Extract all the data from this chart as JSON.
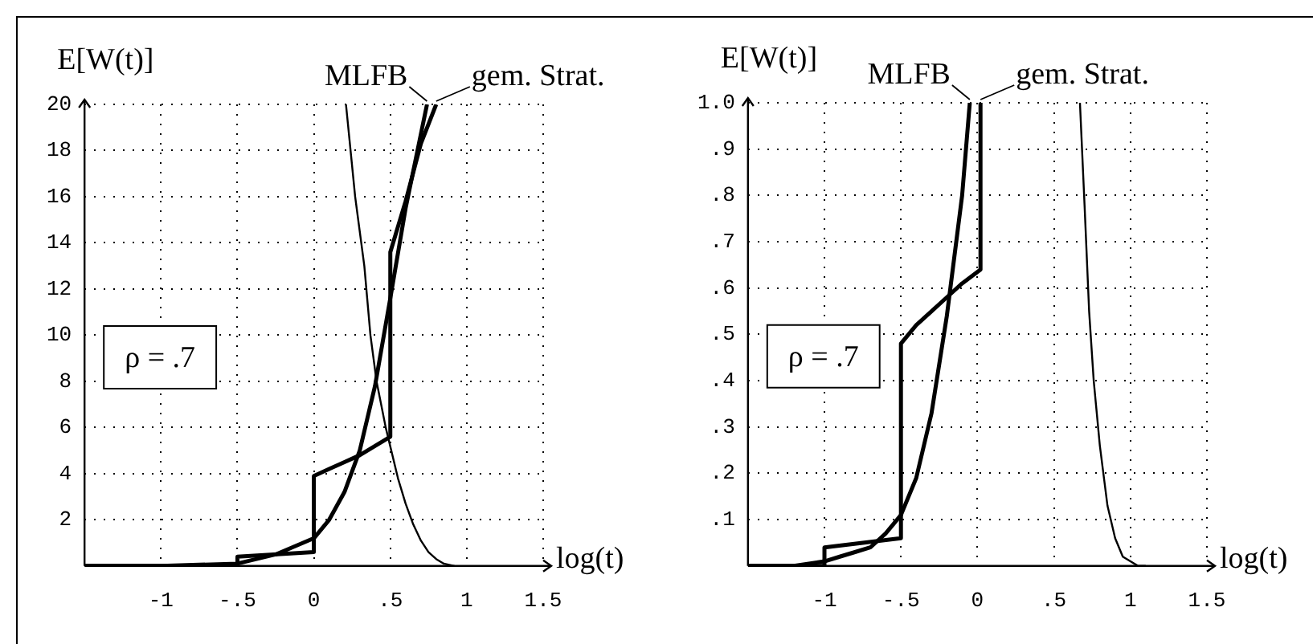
{
  "chart_data": [
    {
      "type": "line",
      "ylabel": "E[W(t)]",
      "xlabel": "log(t)",
      "xlim": [
        -1.5,
        1.5
      ],
      "ylim": [
        0,
        20
      ],
      "xticks": [
        {
          "value": -1,
          "label": "-1"
        },
        {
          "value": -0.5,
          "label": "-.5"
        },
        0,
        {
          "value": 0.5,
          "label": ".5"
        },
        1,
        1.5
      ],
      "yticks": [
        2,
        4,
        6,
        8,
        10,
        12,
        14,
        16,
        18,
        20
      ],
      "grid": true,
      "line_style": "solid",
      "marker": "none",
      "annotations": [
        "ρ = .7"
      ],
      "series": [
        {
          "name": "MLFB",
          "color": "#000000",
          "x": [
            -1.5,
            -1,
            -0.5,
            -0.25,
            0,
            0.1,
            0.2,
            0.3,
            0.4,
            0.5,
            0.6,
            0.74
          ],
          "values": [
            0,
            0,
            0.1,
            0.5,
            1.2,
            2,
            3.2,
            5,
            7.8,
            11.6,
            15.5,
            20
          ]
        },
        {
          "name": "gem. Strat.",
          "color": "#000000",
          "x": [
            -1.5,
            -0.5,
            -0.5,
            0,
            0,
            0.1,
            0.2,
            0.3,
            0.4,
            0.5,
            0.5,
            0.6,
            0.7,
            0.8
          ],
          "values": [
            0,
            0,
            0.4,
            0.6,
            3.9,
            4.2,
            4.5,
            4.8,
            5.2,
            5.6,
            13.6,
            15.8,
            18.3,
            20
          ]
        },
        {
          "color": "#000000",
          "x": [
            0.21,
            0.27,
            0.33,
            0.37,
            0.41,
            0.47,
            0.55,
            0.6,
            0.65,
            0.7,
            0.75,
            0.8,
            0.85,
            0.92
          ],
          "values": [
            20,
            16,
            13,
            10,
            8,
            6,
            3.8,
            2.7,
            1.8,
            1.1,
            0.6,
            0.3,
            0.1,
            0
          ]
        }
      ]
    },
    {
      "type": "line",
      "ylabel": "E[W(t)]",
      "xlabel": "log(t)",
      "xlim": [
        -1.5,
        1.5
      ],
      "ylim": [
        0,
        1
      ],
      "xticks": [
        {
          "value": -1,
          "label": "-1"
        },
        {
          "value": -0.5,
          "label": "-.5"
        },
        0,
        {
          "value": 0.5,
          "label": ".5"
        },
        1,
        1.5
      ],
      "yticks": [
        {
          "value": 0.1,
          "label": ".1"
        },
        {
          "value": 0.2,
          "label": ".2"
        },
        {
          "value": 0.3,
          "label": ".3"
        },
        {
          "value": 0.4,
          "label": ".4"
        },
        {
          "value": 0.5,
          "label": ".5"
        },
        {
          "value": 0.6,
          "label": ".6"
        },
        {
          "value": 0.7,
          "label": ".7"
        },
        {
          "value": 0.8,
          "label": ".8"
        },
        {
          "value": 0.9,
          "label": ".9"
        },
        {
          "value": 1,
          "label": "1.0"
        }
      ],
      "grid": true,
      "line_style": "solid",
      "marker": "none",
      "annotations": [
        "ρ = .7"
      ],
      "series": [
        {
          "name": "MLFB",
          "color": "#000000",
          "x": [
            -1.5,
            -1.2,
            -1,
            -0.9,
            -0.8,
            -0.7,
            -0.6,
            -0.5,
            -0.4,
            -0.3,
            -0.2,
            -0.1,
            -0.05
          ],
          "values": [
            0,
            0,
            0.01,
            0.02,
            0.03,
            0.04,
            0.07,
            0.11,
            0.19,
            0.33,
            0.54,
            0.8,
            1
          ]
        },
        {
          "name": "gem. Strat.",
          "color": "#000000",
          "x": [
            -1.5,
            -1,
            -1,
            -0.5,
            -0.5,
            -0.4,
            -0.3,
            -0.2,
            -0.1,
            0.02,
            0.02
          ],
          "values": [
            0,
            0,
            0.04,
            0.06,
            0.48,
            0.52,
            0.55,
            0.58,
            0.61,
            0.64,
            1
          ]
        },
        {
          "color": "#000000",
          "x": [
            0.67,
            0.7,
            0.73,
            0.76,
            0.8,
            0.85,
            0.9,
            0.95,
            1.05,
            1.1
          ],
          "values": [
            1,
            0.78,
            0.55,
            0.4,
            0.26,
            0.13,
            0.06,
            0.02,
            0,
            0
          ]
        }
      ]
    }
  ]
}
